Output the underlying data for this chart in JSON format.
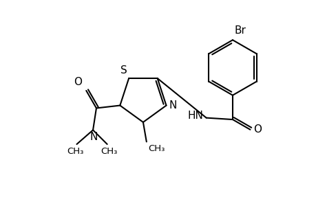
{
  "background_color": "#ffffff",
  "line_color": "#000000",
  "bond_width": 1.5,
  "font_size": 10,
  "figsize": [
    4.6,
    3.0
  ],
  "dpi": 100,
  "xlim": [
    0,
    9.2
  ],
  "ylim": [
    0,
    6.0
  ]
}
